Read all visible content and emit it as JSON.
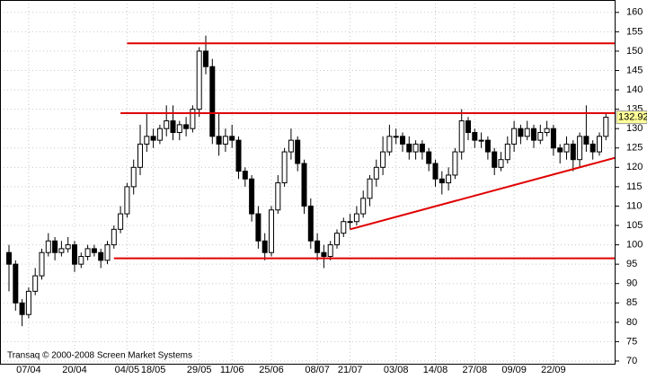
{
  "chart_data": {
    "type": "candlestick",
    "footer": "Transaq © 2000-2008 Screen Market Systems",
    "categories": [
      null,
      null,
      null,
      "07/04",
      null,
      null,
      null,
      null,
      null,
      null,
      "20/04",
      null,
      null,
      null,
      null,
      null,
      null,
      null,
      "04/05",
      null,
      null,
      null,
      "18/05",
      null,
      null,
      null,
      null,
      null,
      null,
      "29/05",
      null,
      null,
      null,
      null,
      "11/06",
      null,
      null,
      null,
      null,
      null,
      "25/06",
      null,
      null,
      null,
      null,
      null,
      null,
      "08/07",
      null,
      null,
      null,
      null,
      "21/07",
      null,
      null,
      null,
      null,
      null,
      null,
      "03/08",
      null,
      null,
      null,
      null,
      null,
      "14/08",
      null,
      null,
      null,
      null,
      null,
      "27/08",
      null,
      null,
      null,
      null,
      null,
      "09/09",
      null,
      null,
      null,
      null,
      null,
      "22/09",
      null,
      null,
      null,
      null,
      null,
      null,
      null,
      null
    ],
    "open": [
      98,
      95,
      85,
      82,
      88,
      92,
      98,
      101,
      98,
      99,
      100,
      95,
      97,
      99,
      98,
      96,
      100,
      104,
      108,
      115,
      120,
      126,
      128,
      127,
      130,
      132,
      129,
      131,
      130,
      135,
      150,
      146,
      128,
      126,
      128,
      127,
      119,
      117,
      108,
      101,
      98,
      109,
      116,
      124,
      127,
      121,
      110,
      101,
      98,
      97,
      100,
      103,
      106,
      106,
      108,
      112,
      117,
      120,
      124,
      128,
      128,
      126,
      124,
      126,
      124,
      121,
      117,
      116,
      118,
      124,
      132,
      129,
      127,
      127,
      124,
      120,
      122,
      126,
      130,
      128,
      130,
      127,
      129,
      130,
      125,
      124,
      126,
      122,
      128,
      126,
      124,
      128
    ],
    "high": [
      100,
      96,
      86,
      89,
      94,
      99,
      103,
      102,
      101,
      102,
      101,
      98,
      100,
      100,
      99,
      101,
      105,
      110,
      116,
      122,
      131,
      134,
      130,
      131,
      136,
      136,
      132,
      133,
      136,
      151,
      154,
      148,
      134,
      130,
      131,
      128,
      120,
      118,
      110,
      103,
      110,
      118,
      125,
      130,
      128,
      122,
      112,
      103,
      100,
      101,
      104,
      107,
      108,
      110,
      114,
      118,
      122,
      128,
      131,
      130,
      129,
      128,
      127,
      127,
      125,
      122,
      119,
      120,
      125,
      135,
      133,
      130,
      129,
      128,
      125,
      124,
      128,
      132,
      131,
      132,
      131,
      131,
      132,
      131,
      126,
      128,
      127,
      129,
      136,
      127,
      129,
      134
    ],
    "low": [
      88,
      83,
      79,
      81,
      87,
      91,
      97,
      96,
      97,
      98,
      93,
      94,
      96,
      97,
      94,
      95,
      99,
      103,
      107,
      113,
      118,
      124,
      125,
      126,
      128,
      127,
      127,
      128,
      129,
      133,
      144,
      126,
      123,
      124,
      125,
      117,
      115,
      106,
      99,
      96,
      97,
      108,
      115,
      122,
      119,
      108,
      99,
      96,
      94,
      96,
      99,
      102,
      104,
      105,
      107,
      110,
      115,
      118,
      123,
      126,
      124,
      122,
      122,
      122,
      119,
      115,
      113,
      114,
      117,
      122,
      127,
      125,
      125,
      122,
      118,
      119,
      121,
      124,
      126,
      127,
      125,
      126,
      128,
      123,
      121,
      122,
      119,
      120,
      124,
      122,
      123,
      127
    ],
    "close": [
      95,
      85,
      82,
      88,
      92,
      98,
      101,
      98,
      99,
      100,
      95,
      97,
      99,
      98,
      96,
      100,
      104,
      108,
      115,
      120,
      126,
      128,
      127,
      130,
      132,
      129,
      131,
      130,
      135,
      150,
      146,
      128,
      126,
      128,
      127,
      119,
      117,
      108,
      101,
      98,
      109,
      116,
      124,
      127,
      121,
      110,
      101,
      98,
      97,
      100,
      103,
      106,
      106,
      108,
      112,
      117,
      120,
      124,
      128,
      128,
      126,
      124,
      126,
      124,
      121,
      117,
      116,
      118,
      124,
      132,
      129,
      127,
      127,
      124,
      120,
      122,
      126,
      130,
      128,
      130,
      127,
      129,
      130,
      125,
      124,
      126,
      122,
      128,
      126,
      124,
      128,
      132.92
    ],
    "ylim": [
      69.3,
      163.2
    ],
    "yticks": [
      70,
      75,
      80,
      85,
      90,
      95,
      100,
      105,
      110,
      115,
      120,
      125,
      130,
      135,
      140,
      145,
      150,
      155,
      160
    ],
    "grid": true,
    "lines": [
      {
        "color": "#e00000",
        "x": [
          18,
          91
        ],
        "y": [
          152,
          152
        ]
      },
      {
        "color": "#e00000",
        "x": [
          17,
          91
        ],
        "y": [
          134,
          134
        ]
      },
      {
        "color": "#e00000",
        "x": [
          16,
          91
        ],
        "y": [
          96.5,
          96.5
        ]
      },
      {
        "color": "#e00000",
        "x": [
          52,
          91
        ],
        "y": [
          104,
          122.5
        ]
      }
    ]
  }
}
